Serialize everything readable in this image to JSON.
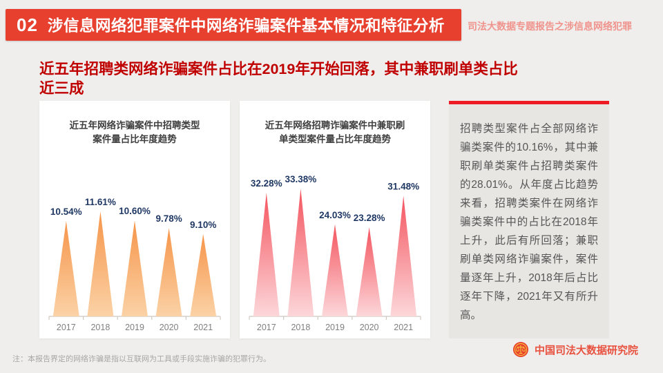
{
  "header": {
    "section_number": "02",
    "title": "涉信息网络犯罪案件中网络诈骗案件基本情况和特征分析",
    "side_note": "司法大数据专题报告之涉信息网络犯罪",
    "bar_color": "#e8402f"
  },
  "subtitle": {
    "line1": "近五年招聘类网络诈骗案件占比在2019年开始回落，其中兼职刷单类占比",
    "line2": "近三成",
    "color": "#c00000"
  },
  "chart_data": [
    {
      "type": "bar",
      "shape": "triangle",
      "title_line1": "近五年网络诈骗案件中招聘类型",
      "title_line2": "案件量占比年度趋势",
      "categories": [
        "2017",
        "2018",
        "2019",
        "2020",
        "2021"
      ],
      "values": [
        10.54,
        11.61,
        10.6,
        9.78,
        9.1
      ],
      "labels": [
        "10.54%",
        "11.61%",
        "10.60%",
        "9.78%",
        "9.10%"
      ],
      "unit": "%",
      "ylim": [
        0,
        11.61
      ],
      "grid": false,
      "color_top": "#f6954a",
      "color_bottom": "#fbd2a6",
      "label_color": "#1f3864",
      "axis_color": "#cfc8c0",
      "tick_label_color": "#7f7f7f"
    },
    {
      "type": "bar",
      "shape": "triangle",
      "title_line1": "近五年网络招聘诈骗案件中兼职刷",
      "title_line2": "单类型案件量占比年度趋势",
      "categories": [
        "2017",
        "2018",
        "2019",
        "2020",
        "2021"
      ],
      "values": [
        32.28,
        33.38,
        24.03,
        23.28,
        31.48
      ],
      "labels": [
        "32.28%",
        "33.38%",
        "24.03%",
        "23.28%",
        "31.48%"
      ],
      "unit": "%",
      "ylim": [
        0,
        33.38
      ],
      "grid": false,
      "color_top": "#f4555f",
      "color_bottom": "#fcd7da",
      "label_color": "#1f3864",
      "axis_color": "#cfc8c0",
      "tick_label_color": "#7f7f7f"
    }
  ],
  "panel": {
    "text": "招聘类型案件占全部网络诈骗类案件的10.16%，其中兼职刷单类案件占招聘类案件的28.01%。从年度占比趋势来看，招聘类案件在网络诈骗类案件中的占比在2018年上升，此后有所回落；兼职刷单类网络诈骗案件，案件量逐年上升，2018年后占比逐年下降，2021年又有所升高。",
    "accent_color": "#ed1b23"
  },
  "footer": {
    "note": "注：本报告界定的网络诈骗是指以互联网为工具或手段实施诈骗的犯罪行为。",
    "logo_text": "中国司法大数据研究院"
  }
}
